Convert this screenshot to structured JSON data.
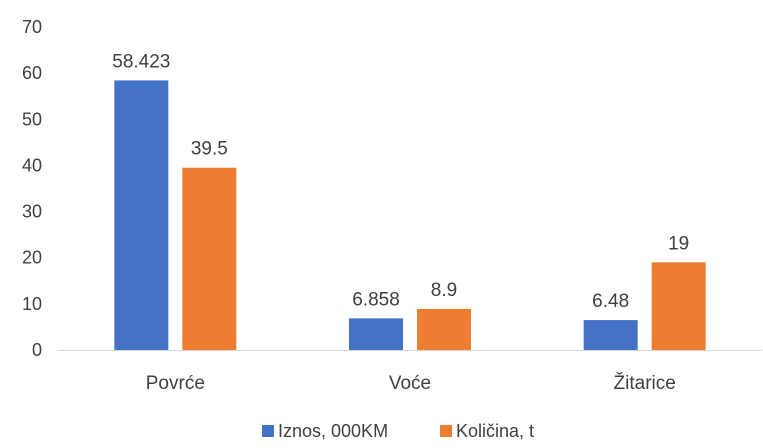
{
  "chart_data": {
    "type": "bar",
    "title": "",
    "xlabel": "",
    "ylabel": "",
    "categories": [
      "Povrće",
      "Voće",
      "Žitarice"
    ],
    "series": [
      {
        "name": "Iznos, 000KM",
        "values": [
          58.423,
          6.858,
          6.48
        ],
        "labels": [
          "58.423",
          "6.858",
          "6.48"
        ],
        "color": "#4472C4"
      },
      {
        "name": "Količina, t",
        "values": [
          39.5,
          8.9,
          19
        ],
        "labels": [
          "39.5",
          "8.9",
          "19"
        ],
        "color": "#ED7D31"
      }
    ],
    "ylim": [
      0,
      70
    ],
    "yticks": [
      "0",
      "10",
      "20",
      "30",
      "40",
      "50",
      "60",
      "70"
    ],
    "grid": false,
    "legend_position": "bottom"
  }
}
